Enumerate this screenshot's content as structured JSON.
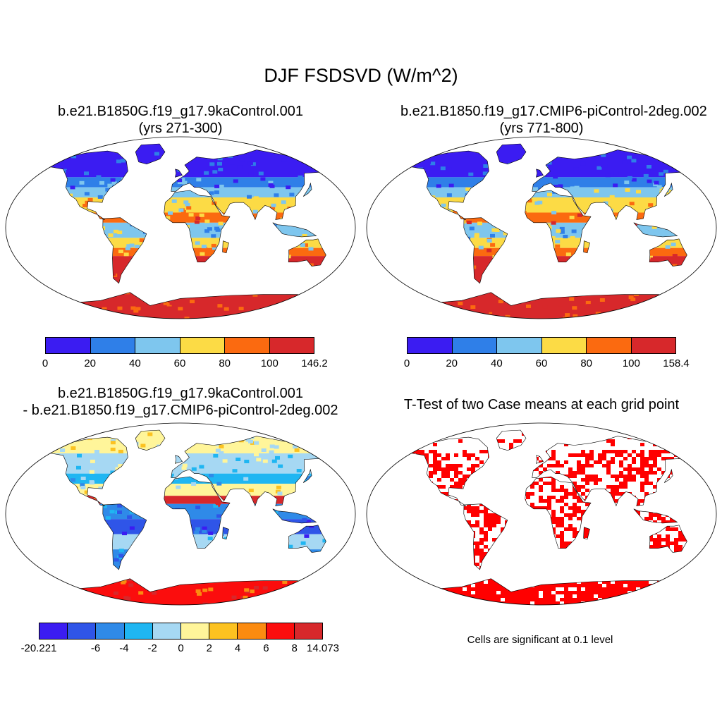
{
  "figure": {
    "title": "DJF FSDSVD (W/m^2)"
  },
  "panels": [
    {
      "id": "case1",
      "title_line1": "b.e21.B1850G.f19_g17.9kaControl.001",
      "title_line2": "(yrs 271-300)",
      "colorbar": {
        "colors": [
          "#3b1cf2",
          "#2f7fe8",
          "#7ec6ee",
          "#fcdb45",
          "#fb6a10",
          "#d7282b"
        ],
        "labels": [
          "0",
          "20",
          "40",
          "60",
          "80",
          "100",
          "146.2"
        ]
      }
    },
    {
      "id": "case2",
      "title_line1": "b.e21.B1850.f19_g17.CMIP6-piControl-2deg.002",
      "title_line2": "(yrs 771-800)",
      "colorbar": {
        "colors": [
          "#3b1cf2",
          "#2f7fe8",
          "#7ec6ee",
          "#fcdb45",
          "#fb6a10",
          "#d7282b"
        ],
        "labels": [
          "0",
          "20",
          "40",
          "60",
          "80",
          "100",
          "158.4"
        ]
      }
    },
    {
      "id": "difference",
      "title_line1": "b.e21.B1850G.f19_g17.9kaControl.001",
      "title_line2": "- b.e21.B1850.f19_g17.CMIP6-piControl-2deg.002",
      "colorbar": {
        "colors": [
          "#3b1cf2",
          "#2f55e8",
          "#2f8ae8",
          "#1fb6f2",
          "#a6d8f3",
          "#fff59a",
          "#fcc220",
          "#fb8b10",
          "#fb0d0d",
          "#d7282b"
        ],
        "labels": [
          "-20.221",
          "",
          "-6",
          "-4",
          "-2",
          "0",
          "2",
          "4",
          "6",
          "8",
          "14.073"
        ]
      }
    },
    {
      "id": "ttest",
      "title_line1": "T-Test of two Case means at each grid point",
      "title_line2": "",
      "note": "Cells are significant at 0.1 level",
      "significant_color": "#ff0000"
    }
  ]
}
